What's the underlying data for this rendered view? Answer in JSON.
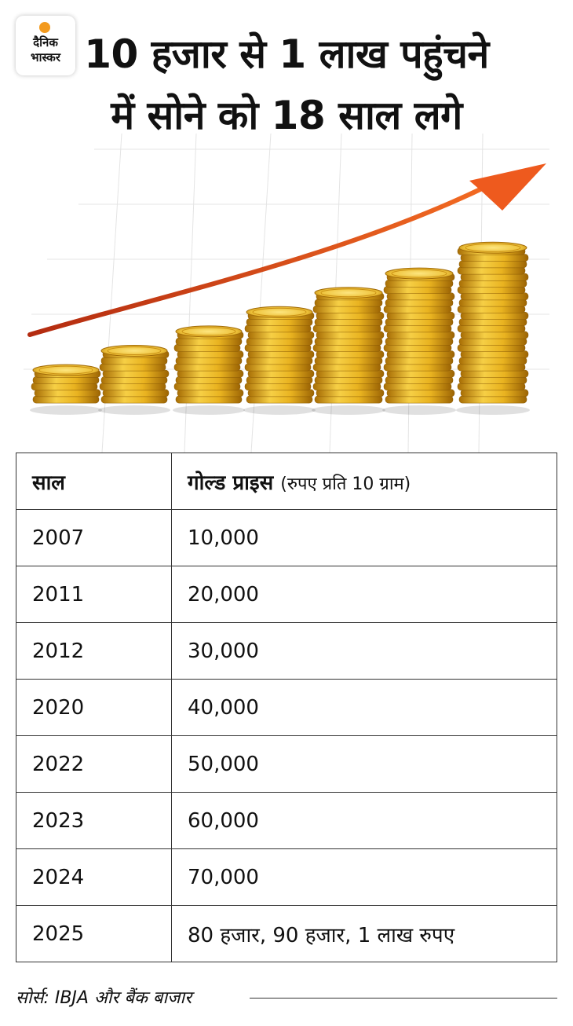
{
  "logo": {
    "line1": "दैनिक",
    "line2": "भास्कर",
    "dot_color": "#f39a1e"
  },
  "title": "10 हजार से 1 लाख पहुंचने में सोने को 18 साल लगे",
  "illustration": {
    "description_icon": "gold-coin-stacks-with-rising-arrow-icon",
    "arrow_color": "#e8401c",
    "coin_color": "#e9b320"
  },
  "chart_data": {
    "type": "table",
    "columns": [
      "साल",
      "गोल्ड प्राइस",
      "(रुपए प्रति 10 ग्राम)"
    ],
    "rows": [
      [
        "2007",
        "10,000"
      ],
      [
        "2011",
        "20,000"
      ],
      [
        "2012",
        "30,000"
      ],
      [
        "2020",
        "40,000"
      ],
      [
        "2022",
        "50,000"
      ],
      [
        "2023",
        "60,000"
      ],
      [
        "2024",
        "70,000"
      ],
      [
        "2025",
        "80 हजार, 90 हजार, 1 लाख रुपए"
      ]
    ]
  },
  "source": "सोर्स: IBJA और बैंक बाजार"
}
